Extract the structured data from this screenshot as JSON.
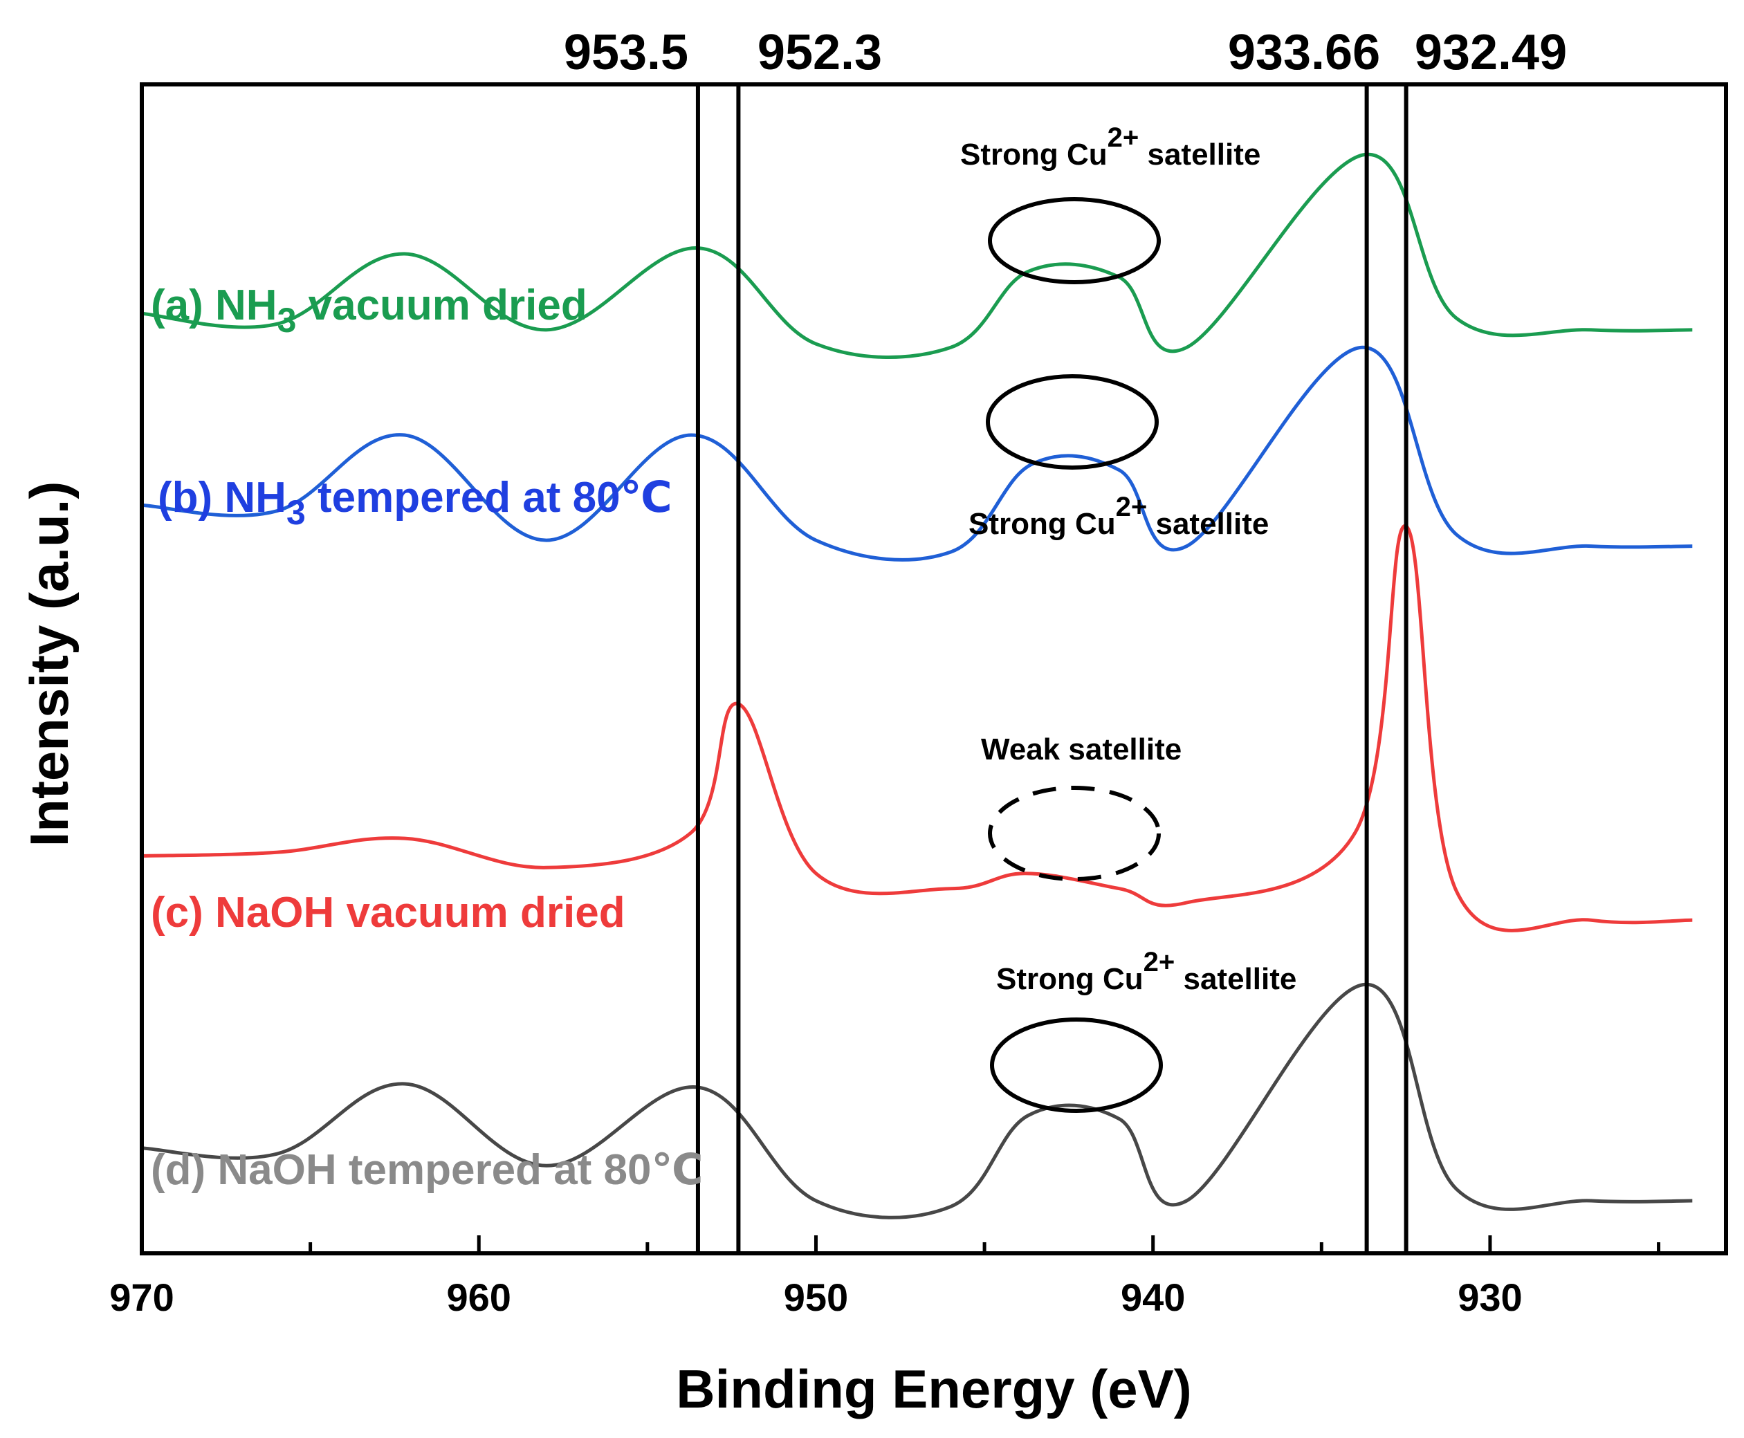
{
  "chart_data": {
    "type": "line",
    "title": "",
    "xlabel": "Binding Energy (eV)",
    "ylabel": "Intensity (a.u.)",
    "xlim": [
      970,
      923
    ],
    "x_reversed": true,
    "xticks": [
      970,
      960,
      950,
      940,
      930
    ],
    "xtick_labels": [
      "970",
      "960",
      "950",
      "940",
      "930"
    ],
    "grid": false,
    "y_ticks_shown": false,
    "reference_lines": [
      {
        "x": 953.5,
        "label": "953.5"
      },
      {
        "x": 952.3,
        "label": "952.3"
      },
      {
        "x": 933.66,
        "label": "933.66"
      },
      {
        "x": 932.49,
        "label": "932.49"
      }
    ],
    "series": [
      {
        "name": "(a) NH3 vacuum dried",
        "label_main": "(a) NH",
        "label_sub": "3",
        "label_rest": " vacuum dried",
        "color": "#1a9c50",
        "baseline": 0.79,
        "peaks": [
          {
            "x": 962.2,
            "height": 0.06,
            "width": 1.6
          },
          {
            "x": 953.5,
            "height": 0.06,
            "width": 1.8
          },
          {
            "x": 942.5,
            "height": 0.06,
            "width": 1.5,
            "shape": "plateau",
            "half_width": 2.0
          },
          {
            "x": 933.7,
            "height": 0.165,
            "width": 1.7
          }
        ],
        "points": [
          [
            970,
            0.804
          ],
          [
            966,
            0.795
          ],
          [
            962.2,
            0.855
          ],
          [
            958,
            0.79
          ],
          [
            953.5,
            0.86
          ],
          [
            950,
            0.778
          ],
          [
            946,
            0.775
          ],
          [
            943.7,
            0.84
          ],
          [
            941,
            0.835
          ],
          [
            939,
            0.775
          ],
          [
            933.7,
            0.94
          ],
          [
            931,
            0.8
          ],
          [
            927,
            0.79
          ],
          [
            924,
            0.79
          ]
        ]
      },
      {
        "name": "(b) NH3 tempered at 80℃",
        "label_main": "(b) NH",
        "label_sub": "3",
        "label_rest": " tempered at 80℃",
        "color": "#1f5fd6",
        "baseline": 0.6,
        "points": [
          [
            970,
            0.64
          ],
          [
            966,
            0.635
          ],
          [
            962.2,
            0.7
          ],
          [
            958,
            0.61
          ],
          [
            953.7,
            0.7
          ],
          [
            950,
            0.61
          ],
          [
            946,
            0.6
          ],
          [
            943.6,
            0.675
          ],
          [
            941,
            0.67
          ],
          [
            939,
            0.605
          ],
          [
            933.8,
            0.775
          ],
          [
            931,
            0.615
          ],
          [
            927,
            0.605
          ],
          [
            924,
            0.605
          ]
        ]
      },
      {
        "name": "(c) NaOH vacuum dried",
        "label": "(c) NaOH vacuum dried",
        "color": "#ee3b3b",
        "baseline": 0.3,
        "points": [
          [
            970,
            0.34
          ],
          [
            966,
            0.343
          ],
          [
            962.2,
            0.355
          ],
          [
            958,
            0.33
          ],
          [
            953.7,
            0.36
          ],
          [
            952.3,
            0.47
          ],
          [
            950,
            0.325
          ],
          [
            946,
            0.312
          ],
          [
            943.8,
            0.325
          ],
          [
            941,
            0.312
          ],
          [
            939,
            0.3
          ],
          [
            934,
            0.36
          ],
          [
            932.49,
            0.622
          ],
          [
            931,
            0.31
          ],
          [
            927,
            0.285
          ],
          [
            924,
            0.285
          ]
        ]
      },
      {
        "name": "(d) NaOH tempered at 80℃",
        "label": "(d) NaOH tempered at 80℃",
        "color": "#474747",
        "baseline": 0.04,
        "points": [
          [
            970,
            0.09
          ],
          [
            966,
            0.085
          ],
          [
            962.2,
            0.145
          ],
          [
            958,
            0.075
          ],
          [
            953.5,
            0.142
          ],
          [
            950,
            0.045
          ],
          [
            946,
            0.04
          ],
          [
            943.7,
            0.118
          ],
          [
            941,
            0.115
          ],
          [
            939,
            0.045
          ],
          [
            933.7,
            0.23
          ],
          [
            931,
            0.055
          ],
          [
            927,
            0.045
          ],
          [
            924,
            0.045
          ]
        ]
      }
    ],
    "annotations": [
      {
        "text": "Strong Cu",
        "sup": "2+",
        "rest": " satellite",
        "series": 0,
        "style": "solid"
      },
      {
        "text": "Strong Cu",
        "sup": "2+",
        "rest": " satellite",
        "series": 1,
        "style": "solid"
      },
      {
        "text": "Weak satellite",
        "series": 2,
        "style": "dashed"
      },
      {
        "text": "Strong Cu",
        "sup": "2+",
        "rest": " satellite",
        "series": 3,
        "style": "solid"
      }
    ]
  }
}
